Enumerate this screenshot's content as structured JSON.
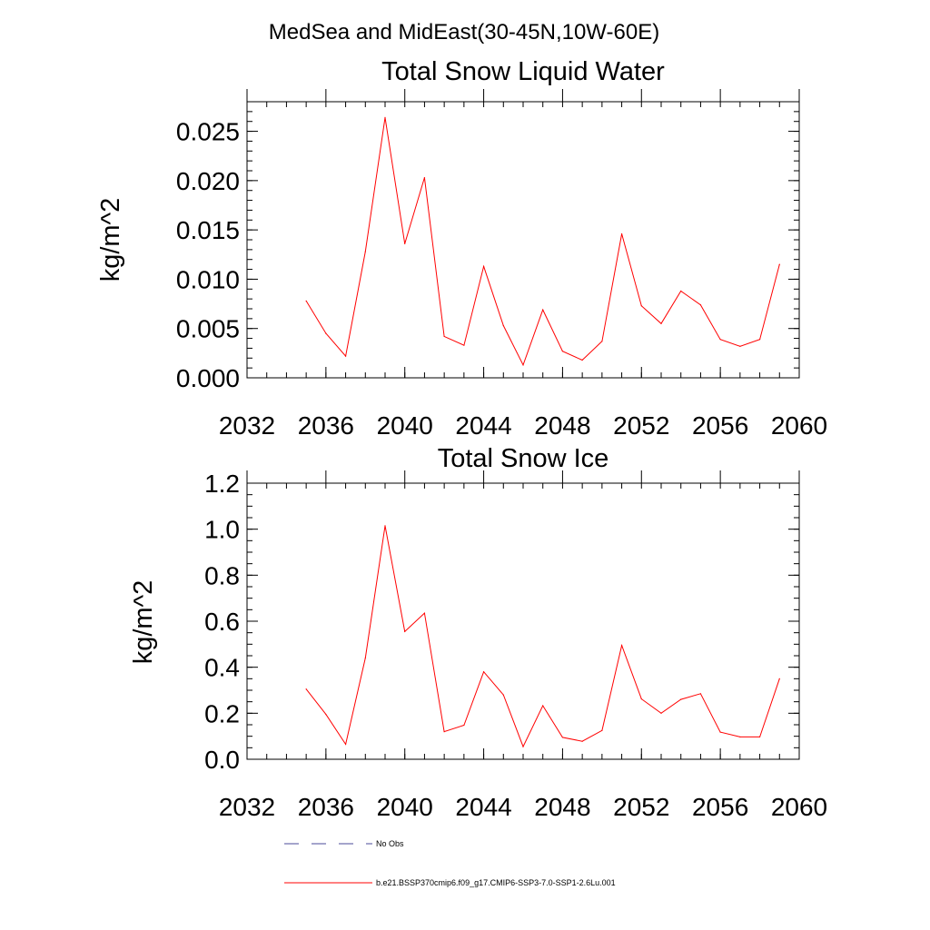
{
  "suptitle": "MedSea and MidEast(30-45N,10W-60E)",
  "legend": {
    "entries": [
      {
        "label": "No Obs",
        "color": "#4a4a9a",
        "style": "dashed"
      },
      {
        "label": "b.e21.BSSP370cmip6.f09_g17.CMIP6-SSP3-7.0-SSP1-2.6Lu.001",
        "color": "#ff0000",
        "style": "solid"
      }
    ]
  },
  "chart_data": [
    {
      "type": "line",
      "title": "Total Snow Liquid Water",
      "xlabel": "",
      "ylabel": "kg/m^2",
      "xlim": [
        2032,
        2060
      ],
      "ylim": [
        0,
        0.028
      ],
      "xticks": [
        2032,
        2036,
        2040,
        2044,
        2048,
        2052,
        2056,
        2060
      ],
      "xtick_labels": [
        "2032",
        "2036",
        "2040",
        "2044",
        "2048",
        "2052",
        "2056",
        "2060"
      ],
      "yticks": [
        0,
        0.005,
        0.01,
        0.015,
        0.02,
        0.025
      ],
      "ytick_labels": [
        "0.000",
        "0.005",
        "0.010",
        "0.015",
        "0.020",
        "0.025"
      ],
      "y_minor_step": 0.001,
      "x_minor_step": 1,
      "series": [
        {
          "color": "#ff0000",
          "x": [
            2035,
            2036,
            2037,
            2038,
            2039,
            2040,
            2041,
            2042,
            2043,
            2044,
            2045,
            2046,
            2047,
            2048,
            2049,
            2050,
            2051,
            2052,
            2053,
            2054,
            2055,
            2056,
            2057,
            2058,
            2059
          ],
          "y": [
            0.0078,
            0.0045,
            0.0022,
            0.0128,
            0.0264,
            0.0136,
            0.0203,
            0.0042,
            0.0033,
            0.0113,
            0.0053,
            0.0013,
            0.0069,
            0.0027,
            0.0018,
            0.0037,
            0.0146,
            0.0073,
            0.0055,
            0.0088,
            0.0074,
            0.0039,
            0.0032,
            0.0039,
            0.0115
          ]
        }
      ]
    },
    {
      "type": "line",
      "title": "Total Snow Ice",
      "xlabel": "",
      "ylabel": "kg/m^2",
      "xlim": [
        2032,
        2060
      ],
      "ylim": [
        0,
        1.2
      ],
      "xticks": [
        2032,
        2036,
        2040,
        2044,
        2048,
        2052,
        2056,
        2060
      ],
      "xtick_labels": [
        "2032",
        "2036",
        "2040",
        "2044",
        "2048",
        "2052",
        "2056",
        "2060"
      ],
      "yticks": [
        0,
        0.2,
        0.4,
        0.6,
        0.8,
        1.0,
        1.2
      ],
      "ytick_labels": [
        "0.0",
        "0.2",
        "0.4",
        "0.6",
        "0.8",
        "1.0",
        "1.2"
      ],
      "y_minor_step": 0.05,
      "x_minor_step": 1,
      "series": [
        {
          "color": "#ff0000",
          "x": [
            2035,
            2036,
            2037,
            2038,
            2039,
            2040,
            2041,
            2042,
            2043,
            2044,
            2045,
            2046,
            2047,
            2048,
            2049,
            2050,
            2051,
            2052,
            2053,
            2054,
            2055,
            2056,
            2057,
            2058,
            2059
          ],
          "y": [
            0.305,
            0.195,
            0.065,
            0.44,
            1.015,
            0.555,
            0.635,
            0.12,
            0.148,
            0.38,
            0.28,
            0.055,
            0.233,
            0.095,
            0.078,
            0.125,
            0.495,
            0.262,
            0.2,
            0.26,
            0.285,
            0.118,
            0.097,
            0.097,
            0.35
          ]
        }
      ]
    }
  ]
}
